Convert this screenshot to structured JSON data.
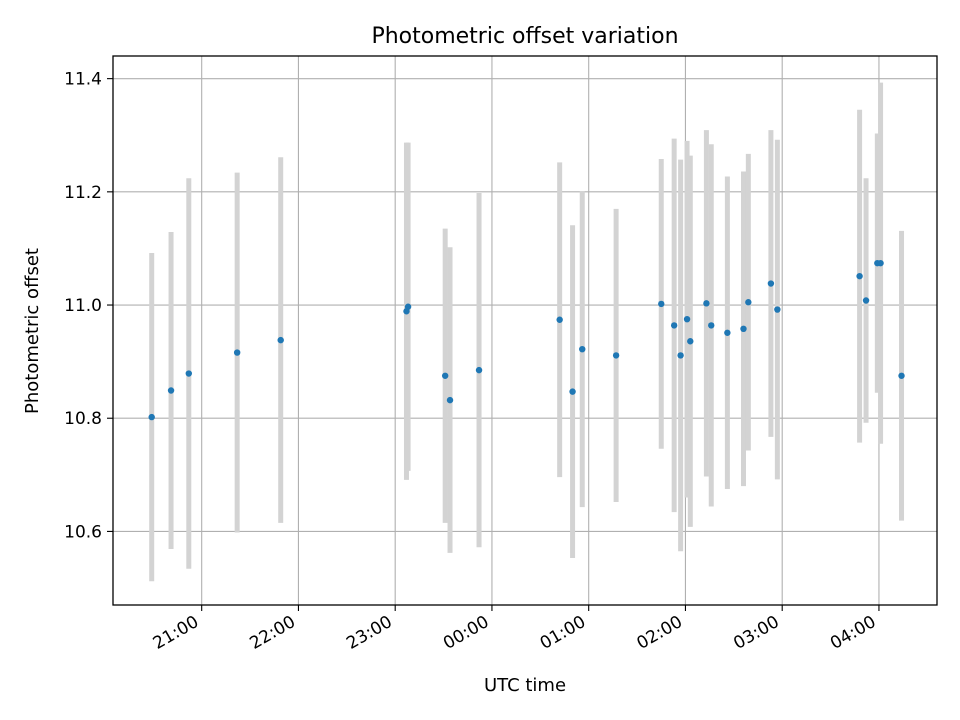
{
  "chart_data": {
    "type": "scatter",
    "title": "Photometric offset variation",
    "xlabel": "UTC time",
    "ylabel": "Photometric offset",
    "x_axis_type": "time",
    "x_axis_start_date": "",
    "xlim": [
      "20:05",
      "04:36"
    ],
    "ylim": [
      10.47,
      11.44
    ],
    "yticks": [
      10.6,
      10.8,
      11.0,
      11.2,
      11.4
    ],
    "ytick_labels": [
      "10.6",
      "10.8",
      "11.0",
      "11.2",
      "11.4"
    ],
    "xticks": [
      "21:00",
      "22:00",
      "23:00",
      "00:00",
      "01:00",
      "02:00",
      "03:00",
      "04:00"
    ],
    "xtick_labels": [
      "21:00",
      "22:00",
      "23:00",
      "00:00",
      "01:00",
      "02:00",
      "03:00",
      "04:00"
    ],
    "grid": true,
    "point_color": "#1f77b4",
    "errorbar_color": "#d3d3d3",
    "points": [
      {
        "time": "20:29",
        "y": 10.802,
        "yerr": 0.29
      },
      {
        "time": "20:41",
        "y": 10.849,
        "yerr": 0.28
      },
      {
        "time": "20:52",
        "y": 10.879,
        "yerr": 0.345
      },
      {
        "time": "21:22",
        "y": 10.916,
        "yerr": 0.318
      },
      {
        "time": "21:49",
        "y": 10.938,
        "yerr": 0.323
      },
      {
        "time": "23:07",
        "y": 10.989,
        "yerr": 0.298
      },
      {
        "time": "23:08",
        "y": 10.997,
        "yerr": 0.29
      },
      {
        "time": "23:31",
        "y": 10.875,
        "yerr": 0.26
      },
      {
        "time": "23:34",
        "y": 10.832,
        "yerr": 0.27
      },
      {
        "time": "23:52",
        "y": 10.885,
        "yerr": 0.313
      },
      {
        "time": "00:42",
        "y": 10.974,
        "yerr": 0.278
      },
      {
        "time": "00:50",
        "y": 10.847,
        "yerr": 0.294
      },
      {
        "time": "00:56",
        "y": 10.922,
        "yerr": 0.279
      },
      {
        "time": "01:17",
        "y": 10.911,
        "yerr": 0.259
      },
      {
        "time": "01:45",
        "y": 11.002,
        "yerr": 0.256
      },
      {
        "time": "01:53",
        "y": 10.964,
        "yerr": 0.33
      },
      {
        "time": "01:57",
        "y": 10.911,
        "yerr": 0.346
      },
      {
        "time": "02:01",
        "y": 10.975,
        "yerr": 0.315
      },
      {
        "time": "02:03",
        "y": 10.936,
        "yerr": 0.328
      },
      {
        "time": "02:13",
        "y": 11.003,
        "yerr": 0.306
      },
      {
        "time": "02:16",
        "y": 10.964,
        "yerr": 0.32
      },
      {
        "time": "02:26",
        "y": 10.951,
        "yerr": 0.276
      },
      {
        "time": "02:36",
        "y": 10.958,
        "yerr": 0.278
      },
      {
        "time": "02:39",
        "y": 11.005,
        "yerr": 0.262
      },
      {
        "time": "02:53",
        "y": 11.038,
        "yerr": 0.271
      },
      {
        "time": "02:57",
        "y": 10.992,
        "yerr": 0.3
      },
      {
        "time": "03:48",
        "y": 11.051,
        "yerr": 0.294
      },
      {
        "time": "03:52",
        "y": 11.008,
        "yerr": 0.216
      },
      {
        "time": "03:59",
        "y": 11.074,
        "yerr": 0.229
      },
      {
        "time": "04:01",
        "y": 11.074,
        "yerr": 0.319
      },
      {
        "time": "04:14",
        "y": 10.875,
        "yerr": 0.256
      }
    ]
  }
}
